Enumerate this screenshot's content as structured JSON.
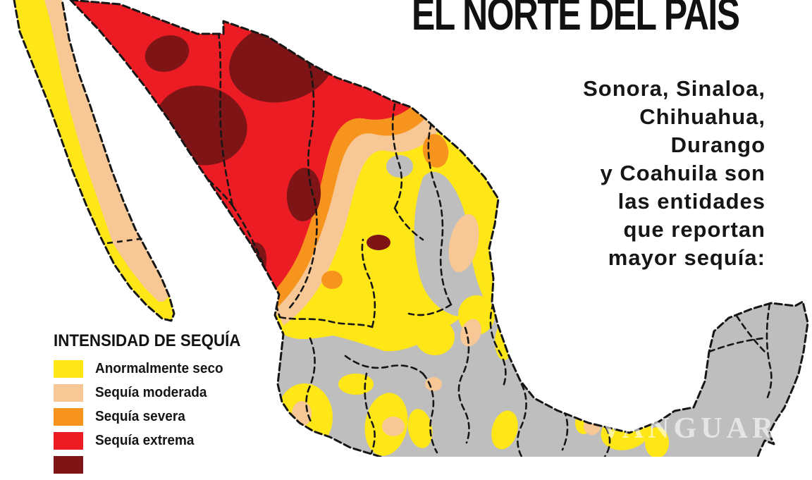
{
  "title": "EL NORTE DEL PAÍS",
  "subtitle_lines": [
    "Sonora, Sinaloa,",
    "Chihuahua,",
    "Durango",
    "y Coahuila son",
    "las entidades",
    "que reportan",
    "mayor sequía:"
  ],
  "legend": {
    "title": "INTENSIDAD DE SEQUÍA",
    "items": [
      {
        "label": "Anormalmente seco",
        "color": "#FFE617"
      },
      {
        "label": "Sequía moderada",
        "color": "#F7C795"
      },
      {
        "label": "Sequía severa",
        "color": "#F7941E"
      },
      {
        "label": "Sequía extrema",
        "color": "#EC1C24"
      }
    ],
    "partial_item_color": "#7E1416"
  },
  "watermark": "VANGUARDIA",
  "map": {
    "region": "México",
    "palette": {
      "sea": "#FFFFFF",
      "nodata": "#BEBEBE",
      "yellow": "#FFE617",
      "peach": "#F7C795",
      "orange": "#F7941E",
      "red": "#EC1C24",
      "darkred": "#7E1416",
      "line": "#161616"
    }
  }
}
